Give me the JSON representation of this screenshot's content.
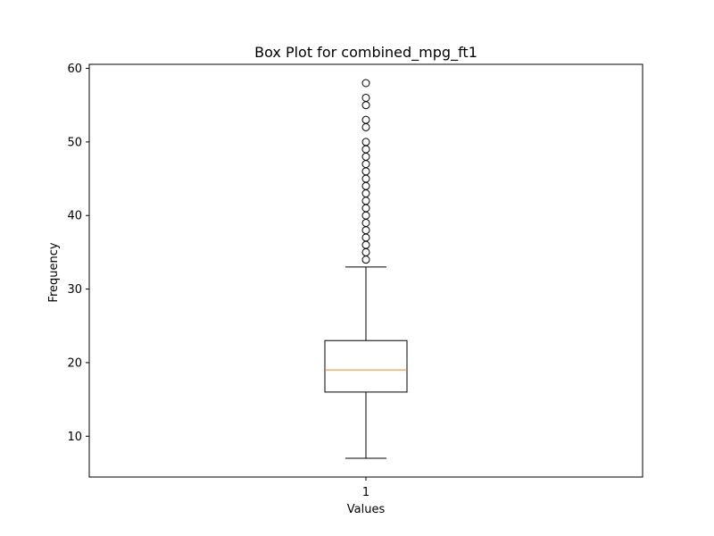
{
  "chart_data": {
    "type": "box",
    "title": "Box Plot for combined_mpg_ft1",
    "xlabel": "Values",
    "ylabel": "Frequency",
    "categories": [
      "1"
    ],
    "ylim": [
      4.45,
      60.55
    ],
    "yticks": [
      10,
      20,
      30,
      40,
      50,
      60
    ],
    "grid": false,
    "boxes": [
      {
        "category": "1",
        "whisker_low": 7,
        "q1": 16,
        "median": 19,
        "q3": 23,
        "whisker_high": 33,
        "outliers": [
          34,
          35,
          36,
          37,
          38,
          39,
          40,
          41,
          42,
          43,
          44,
          45,
          46,
          47,
          48,
          49,
          50,
          52,
          53,
          55,
          56,
          58
        ]
      }
    ],
    "colors": {
      "median": "#ff7f0e",
      "box": "#000000",
      "axes": "#000000"
    }
  }
}
